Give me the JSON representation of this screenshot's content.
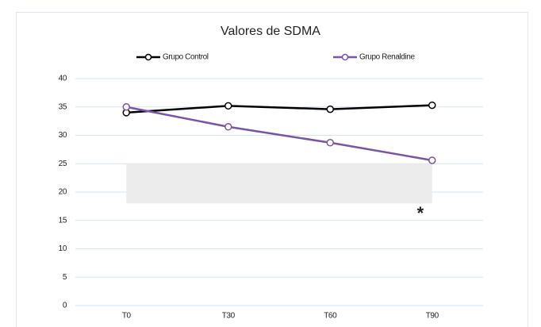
{
  "chart_data": {
    "type": "line",
    "title": "Valores de SDMA",
    "categories": [
      "T0",
      "T30",
      "T60",
      "T90"
    ],
    "series": [
      {
        "name": "Grupo Control",
        "color": "#000000",
        "values": [
          34,
          35.2,
          34.6,
          35.3
        ]
      },
      {
        "name": "Grupo Renaldine",
        "color": "#7a55a6",
        "values": [
          35,
          31.5,
          28.7,
          25.6
        ]
      }
    ],
    "ylim": [
      0,
      40
    ],
    "yticks": [
      0,
      5,
      10,
      15,
      20,
      25,
      30,
      35,
      40
    ],
    "grid": true,
    "legend": "top",
    "shaded_range": [
      18,
      25
    ],
    "shaded_color": "#ececec",
    "annotation": "*"
  }
}
